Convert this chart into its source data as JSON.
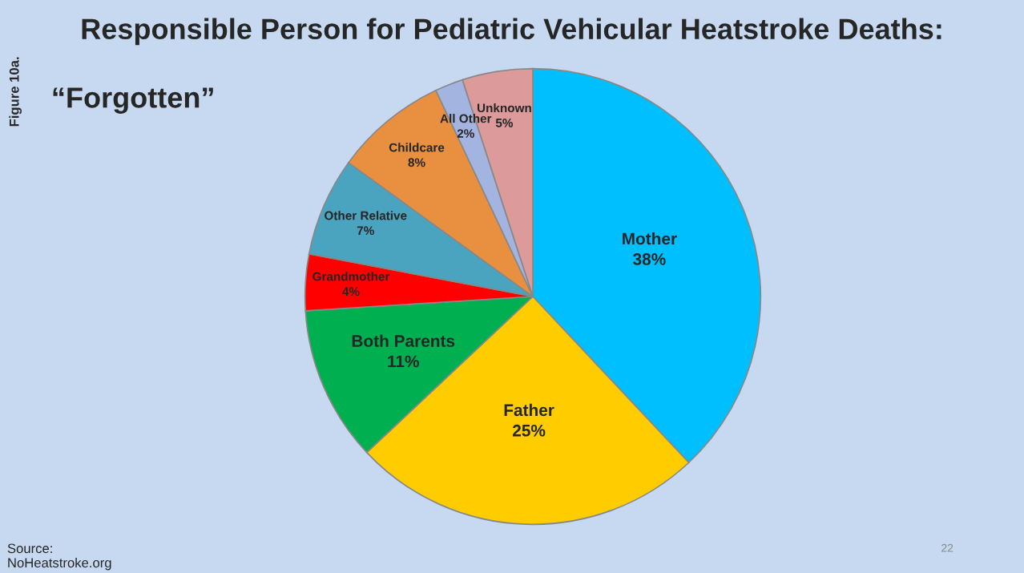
{
  "chart_data": {
    "type": "pie",
    "title": "Responsible Person for Pediatric Vehicular Heatstroke Deaths:",
    "subtitle": "“Forgotten”",
    "categories": [
      "Mother",
      "Father",
      "Both Parents",
      "Grandmother",
      "Other Relative",
      "Childcare",
      "All Other",
      "Unknown"
    ],
    "values": [
      38,
      25,
      11,
      4,
      7,
      8,
      2,
      5
    ],
    "value_labels": [
      "38%",
      "25%",
      "11%",
      "4%",
      "7%",
      "8%",
      "2%",
      "5%"
    ],
    "colors": [
      "#00bfff",
      "#ffcc00",
      "#00b050",
      "#ff0000",
      "#4aa3bf",
      "#e8903f",
      "#a4b4e0",
      "#dc9a9a"
    ],
    "annotations": [
      "Figure 10a.",
      "Source:\nNoHeatstroke.org",
      "22"
    ]
  }
}
